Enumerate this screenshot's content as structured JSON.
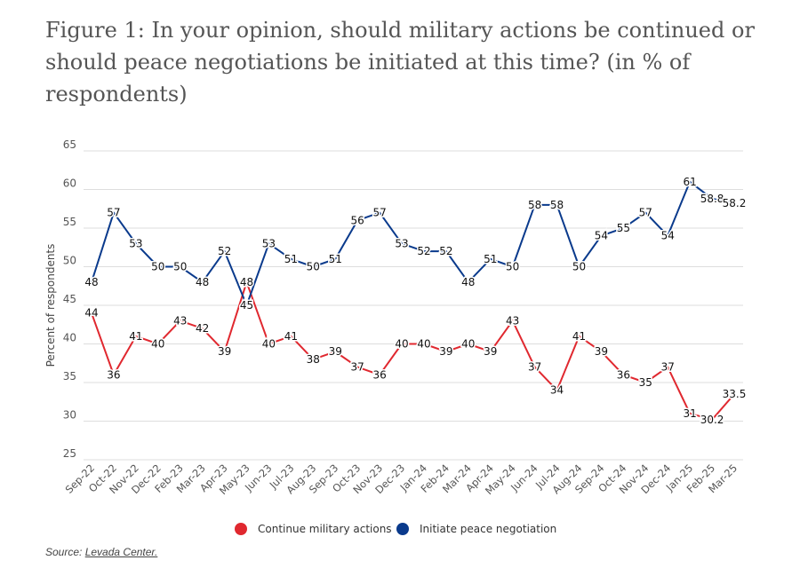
{
  "figure": {
    "title_lines": [
      "Figure 1: In your opinion, should military actions be continued or",
      "should peace negotiations be initiated at this time? (in % of",
      "respondents)"
    ],
    "source_label": "Source: ",
    "source_link": "Levada Center."
  },
  "chart_data": {
    "type": "line",
    "title": "Figure 1: In your opinion, should military actions be continued or should peace negotiations be initiated at this time? (in % of respondents)",
    "xlabel": "",
    "ylabel": "Percent of respondents",
    "ylim": [
      25,
      65
    ],
    "yticks": [
      25,
      30,
      35,
      40,
      45,
      50,
      55,
      60,
      65
    ],
    "grid": true,
    "legend_position": "bottom",
    "categories": [
      "Sep-22",
      "Oct-22",
      "Nov-22",
      "Dec-22",
      "Feb-23",
      "Mar-23",
      "Apr-23",
      "May-23",
      "Jun-23",
      "Jul-23",
      "Aug-23",
      "Sep-23",
      "Oct-23",
      "Nov-23",
      "Dec-23",
      "Jan-24",
      "Feb-24",
      "Mar-24",
      "Apr-24",
      "May-24",
      "Jun-24",
      "Jul-24",
      "Aug-24",
      "Sep-24",
      "Oct-24",
      "Nov-24",
      "Dec-24",
      "Jan-25",
      "Feb-25",
      "Mar-25"
    ],
    "series": [
      {
        "name": "Continue military actions",
        "color": "#e0282f",
        "values": [
          44,
          36,
          41,
          40,
          43,
          42,
          39,
          48,
          40,
          41,
          38,
          39,
          37,
          36,
          40,
          40,
          39,
          40,
          39,
          43,
          37,
          34,
          41,
          39,
          36,
          35,
          37,
          31,
          30.2,
          33.5
        ]
      },
      {
        "name": "Initiate peace negotiation",
        "color": "#0a3a8c",
        "values": [
          48,
          57,
          53,
          50,
          50,
          48,
          52,
          45,
          53,
          51,
          50,
          51,
          56,
          57,
          53,
          52,
          52,
          48,
          51,
          50,
          58,
          58,
          50,
          54,
          55,
          57,
          54,
          61,
          58.8,
          58.2
        ]
      }
    ]
  }
}
